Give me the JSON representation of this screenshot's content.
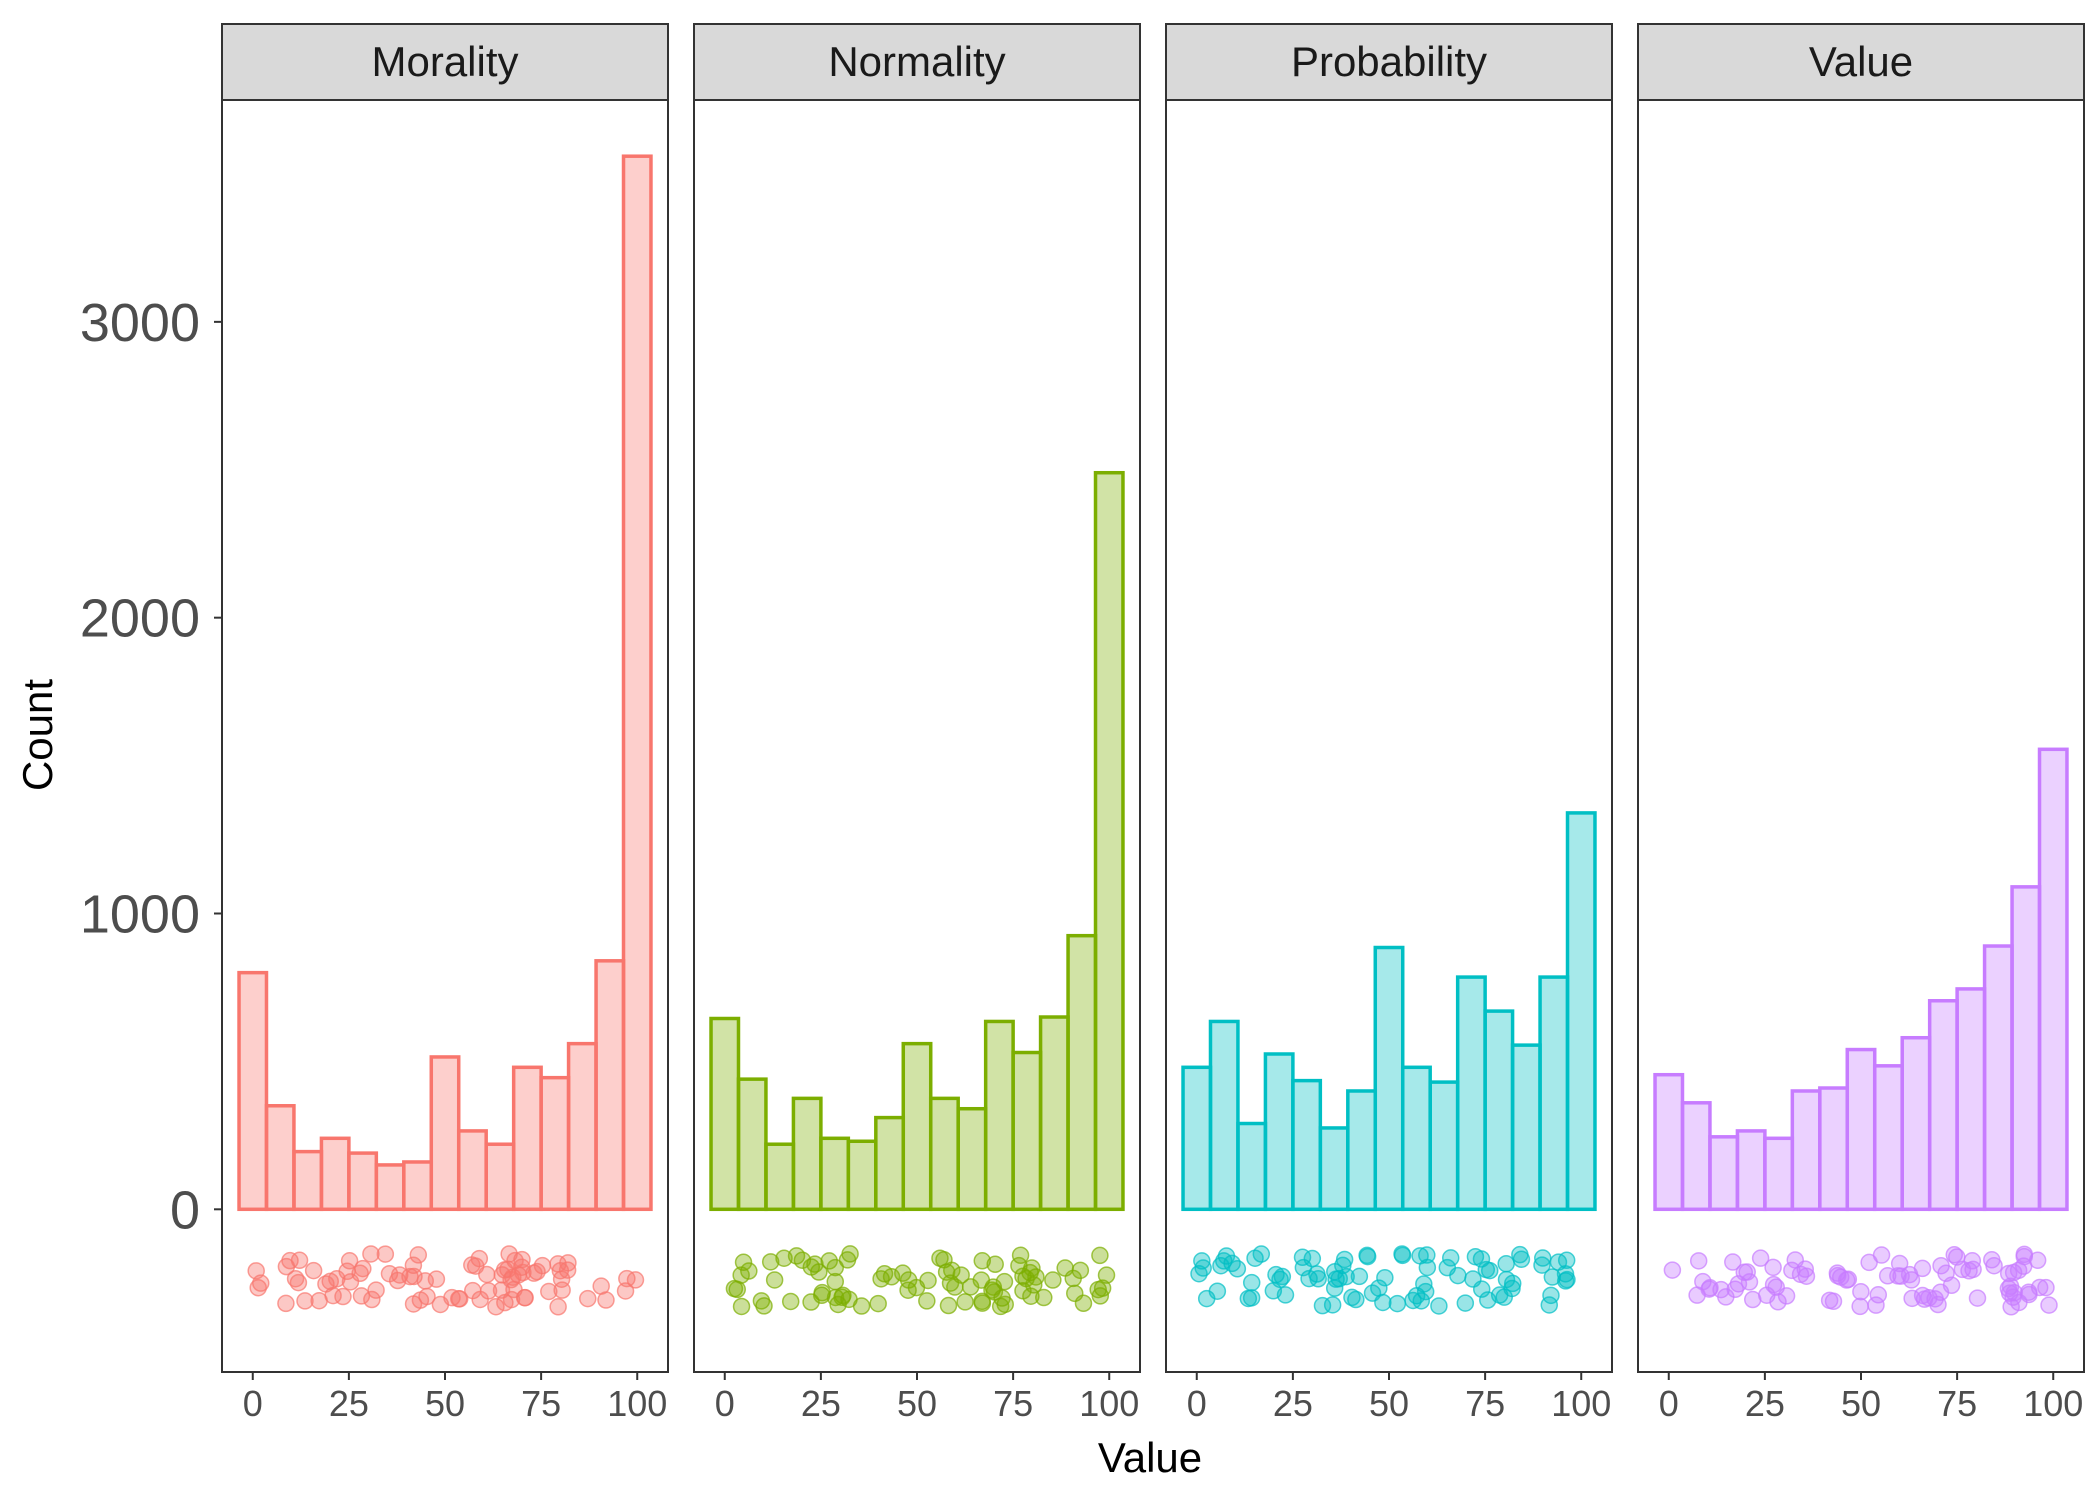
{
  "chart_data": {
    "type": "bar",
    "xlabel": "Value",
    "ylabel": "Count",
    "y_ticks": [
      0,
      1000,
      2000,
      3000
    ],
    "x_ticks": [
      0,
      25,
      50,
      75,
      100
    ],
    "ylim": [
      -550,
      3750
    ],
    "xlim": [
      -8,
      108
    ],
    "grid": false,
    "legend": "none",
    "bin_width": 7.14,
    "bin_centers": [
      0,
      7.14,
      14.29,
      21.43,
      28.57,
      35.71,
      42.86,
      50,
      57.14,
      64.29,
      71.43,
      78.57,
      85.71,
      92.86,
      100
    ],
    "panels": [
      {
        "name": "Morality",
        "color": "#F8766D",
        "values": [
          800,
          350,
          195,
          240,
          190,
          150,
          160,
          515,
          265,
          220,
          480,
          445,
          560,
          840,
          3560
        ]
      },
      {
        "name": "Normality",
        "color": "#7CAE00",
        "values": [
          645,
          440,
          220,
          375,
          240,
          230,
          310,
          560,
          375,
          340,
          635,
          530,
          650,
          925,
          2490
        ]
      },
      {
        "name": "Probability",
        "color": "#00BFC4",
        "values": [
          480,
          635,
          290,
          525,
          435,
          275,
          400,
          885,
          480,
          430,
          785,
          670,
          555,
          785,
          1340
        ]
      },
      {
        "name": "Value",
        "color": "#C77CFF",
        "values": [
          455,
          360,
          245,
          265,
          240,
          400,
          410,
          540,
          485,
          580,
          705,
          745,
          890,
          1090,
          1555
        ]
      }
    ]
  }
}
